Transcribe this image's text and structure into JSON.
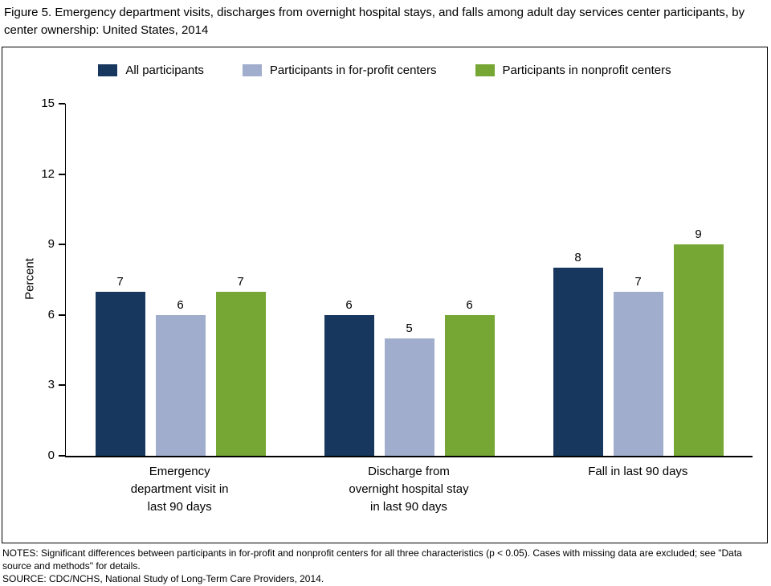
{
  "figure": {
    "title": "Figure 5. Emergency department visits, discharges from overnight hospital stays, and falls among adult day services center participants, by center ownership: United States, 2014"
  },
  "chart_data": {
    "type": "bar",
    "title": "Emergency department visits, discharges from overnight hospital stays, and falls among adult day services center participants, by center ownership: United States, 2014",
    "xlabel": "",
    "ylabel": "Percent",
    "ylim": [
      0,
      15
    ],
    "yticks": [
      0,
      3,
      6,
      9,
      12,
      15
    ],
    "grid": false,
    "legend_position": "top",
    "categories": [
      "Emergency\ndepartment visit in\nlast 90 days",
      "Discharge from\novernight hospital stay\nin last 90 days",
      "Fall in last 90 days"
    ],
    "series": [
      {
        "name": "All participants",
        "color": "#17375e",
        "values": [
          7,
          6,
          8
        ]
      },
      {
        "name": "Participants in for-profit centers",
        "color": "#a0adcc",
        "values": [
          6,
          5,
          7
        ]
      },
      {
        "name": "Participants in nonprofit centers",
        "color": "#76a633",
        "values": [
          7,
          6,
          9
        ]
      }
    ]
  },
  "notes": {
    "notes_text": "NOTES: Significant differences between participants in for-profit and nonprofit centers for all three characteristics (p < 0.05). Cases with missing data are excluded; see \"Data source and methods\" for details.",
    "source_text": "SOURCE: CDC/NCHS, National Study of Long-Term Care Providers, 2014."
  }
}
